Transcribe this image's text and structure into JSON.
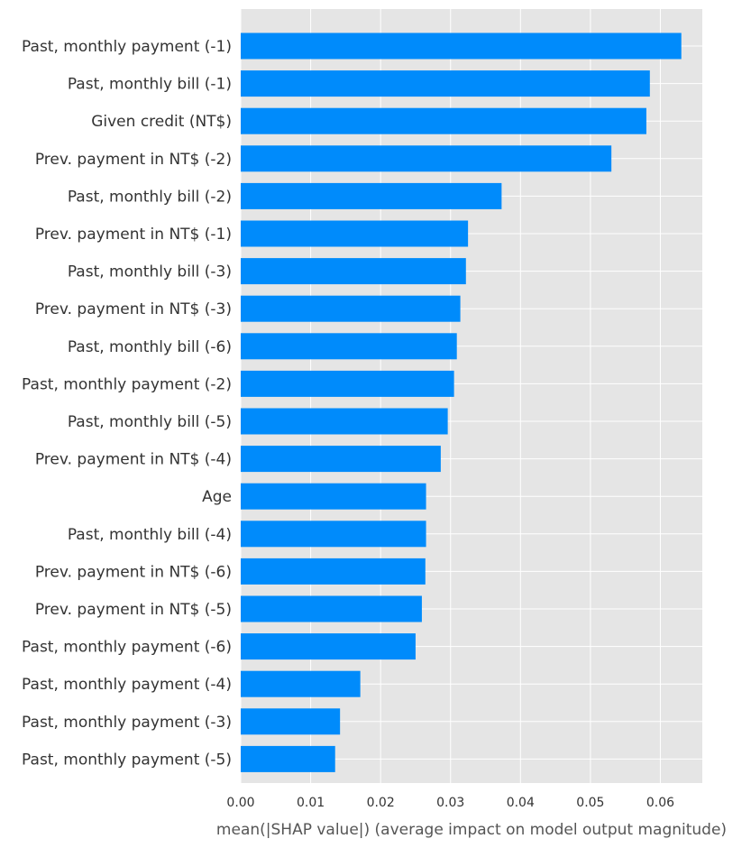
{
  "chart_data": {
    "type": "bar",
    "orientation": "horizontal",
    "categories": [
      "Past, monthly payment (-1)",
      "Past, monthly bill (-1)",
      "Given credit (NT$)",
      "Prev. payment in NT$ (-2)",
      "Past, monthly bill (-2)",
      "Prev. payment in NT$ (-1)",
      "Past, monthly bill (-3)",
      "Prev. payment in NT$ (-3)",
      "Past, monthly bill (-6)",
      "Past, monthly payment (-2)",
      "Past, monthly bill (-5)",
      "Prev. payment in NT$ (-4)",
      "Age",
      "Past, monthly bill (-4)",
      "Prev. payment in NT$ (-6)",
      "Prev. payment in NT$ (-5)",
      "Past, monthly payment (-6)",
      "Past, monthly payment (-4)",
      "Past, monthly payment (-3)",
      "Past, monthly payment (-5)"
    ],
    "values": [
      0.063,
      0.0585,
      0.058,
      0.053,
      0.0373,
      0.0325,
      0.0322,
      0.0314,
      0.0309,
      0.0305,
      0.0296,
      0.0286,
      0.0265,
      0.0265,
      0.0264,
      0.0259,
      0.025,
      0.0171,
      0.0142,
      0.0135
    ],
    "title": "",
    "xlabel": "mean(|SHAP value|) (average impact on model output magnitude)",
    "ylabel": "",
    "xlim": [
      0,
      0.066
    ],
    "xticks": [
      0.0,
      0.01,
      0.02,
      0.03,
      0.04,
      0.05,
      0.06
    ],
    "xtick_labels": [
      "0.00",
      "0.01",
      "0.02",
      "0.03",
      "0.04",
      "0.05",
      "0.06"
    ],
    "grid": true,
    "colors": {
      "bar": "#008bfb",
      "background": "#e5e5e5",
      "grid": "#ffffff",
      "text": "#333333"
    }
  }
}
